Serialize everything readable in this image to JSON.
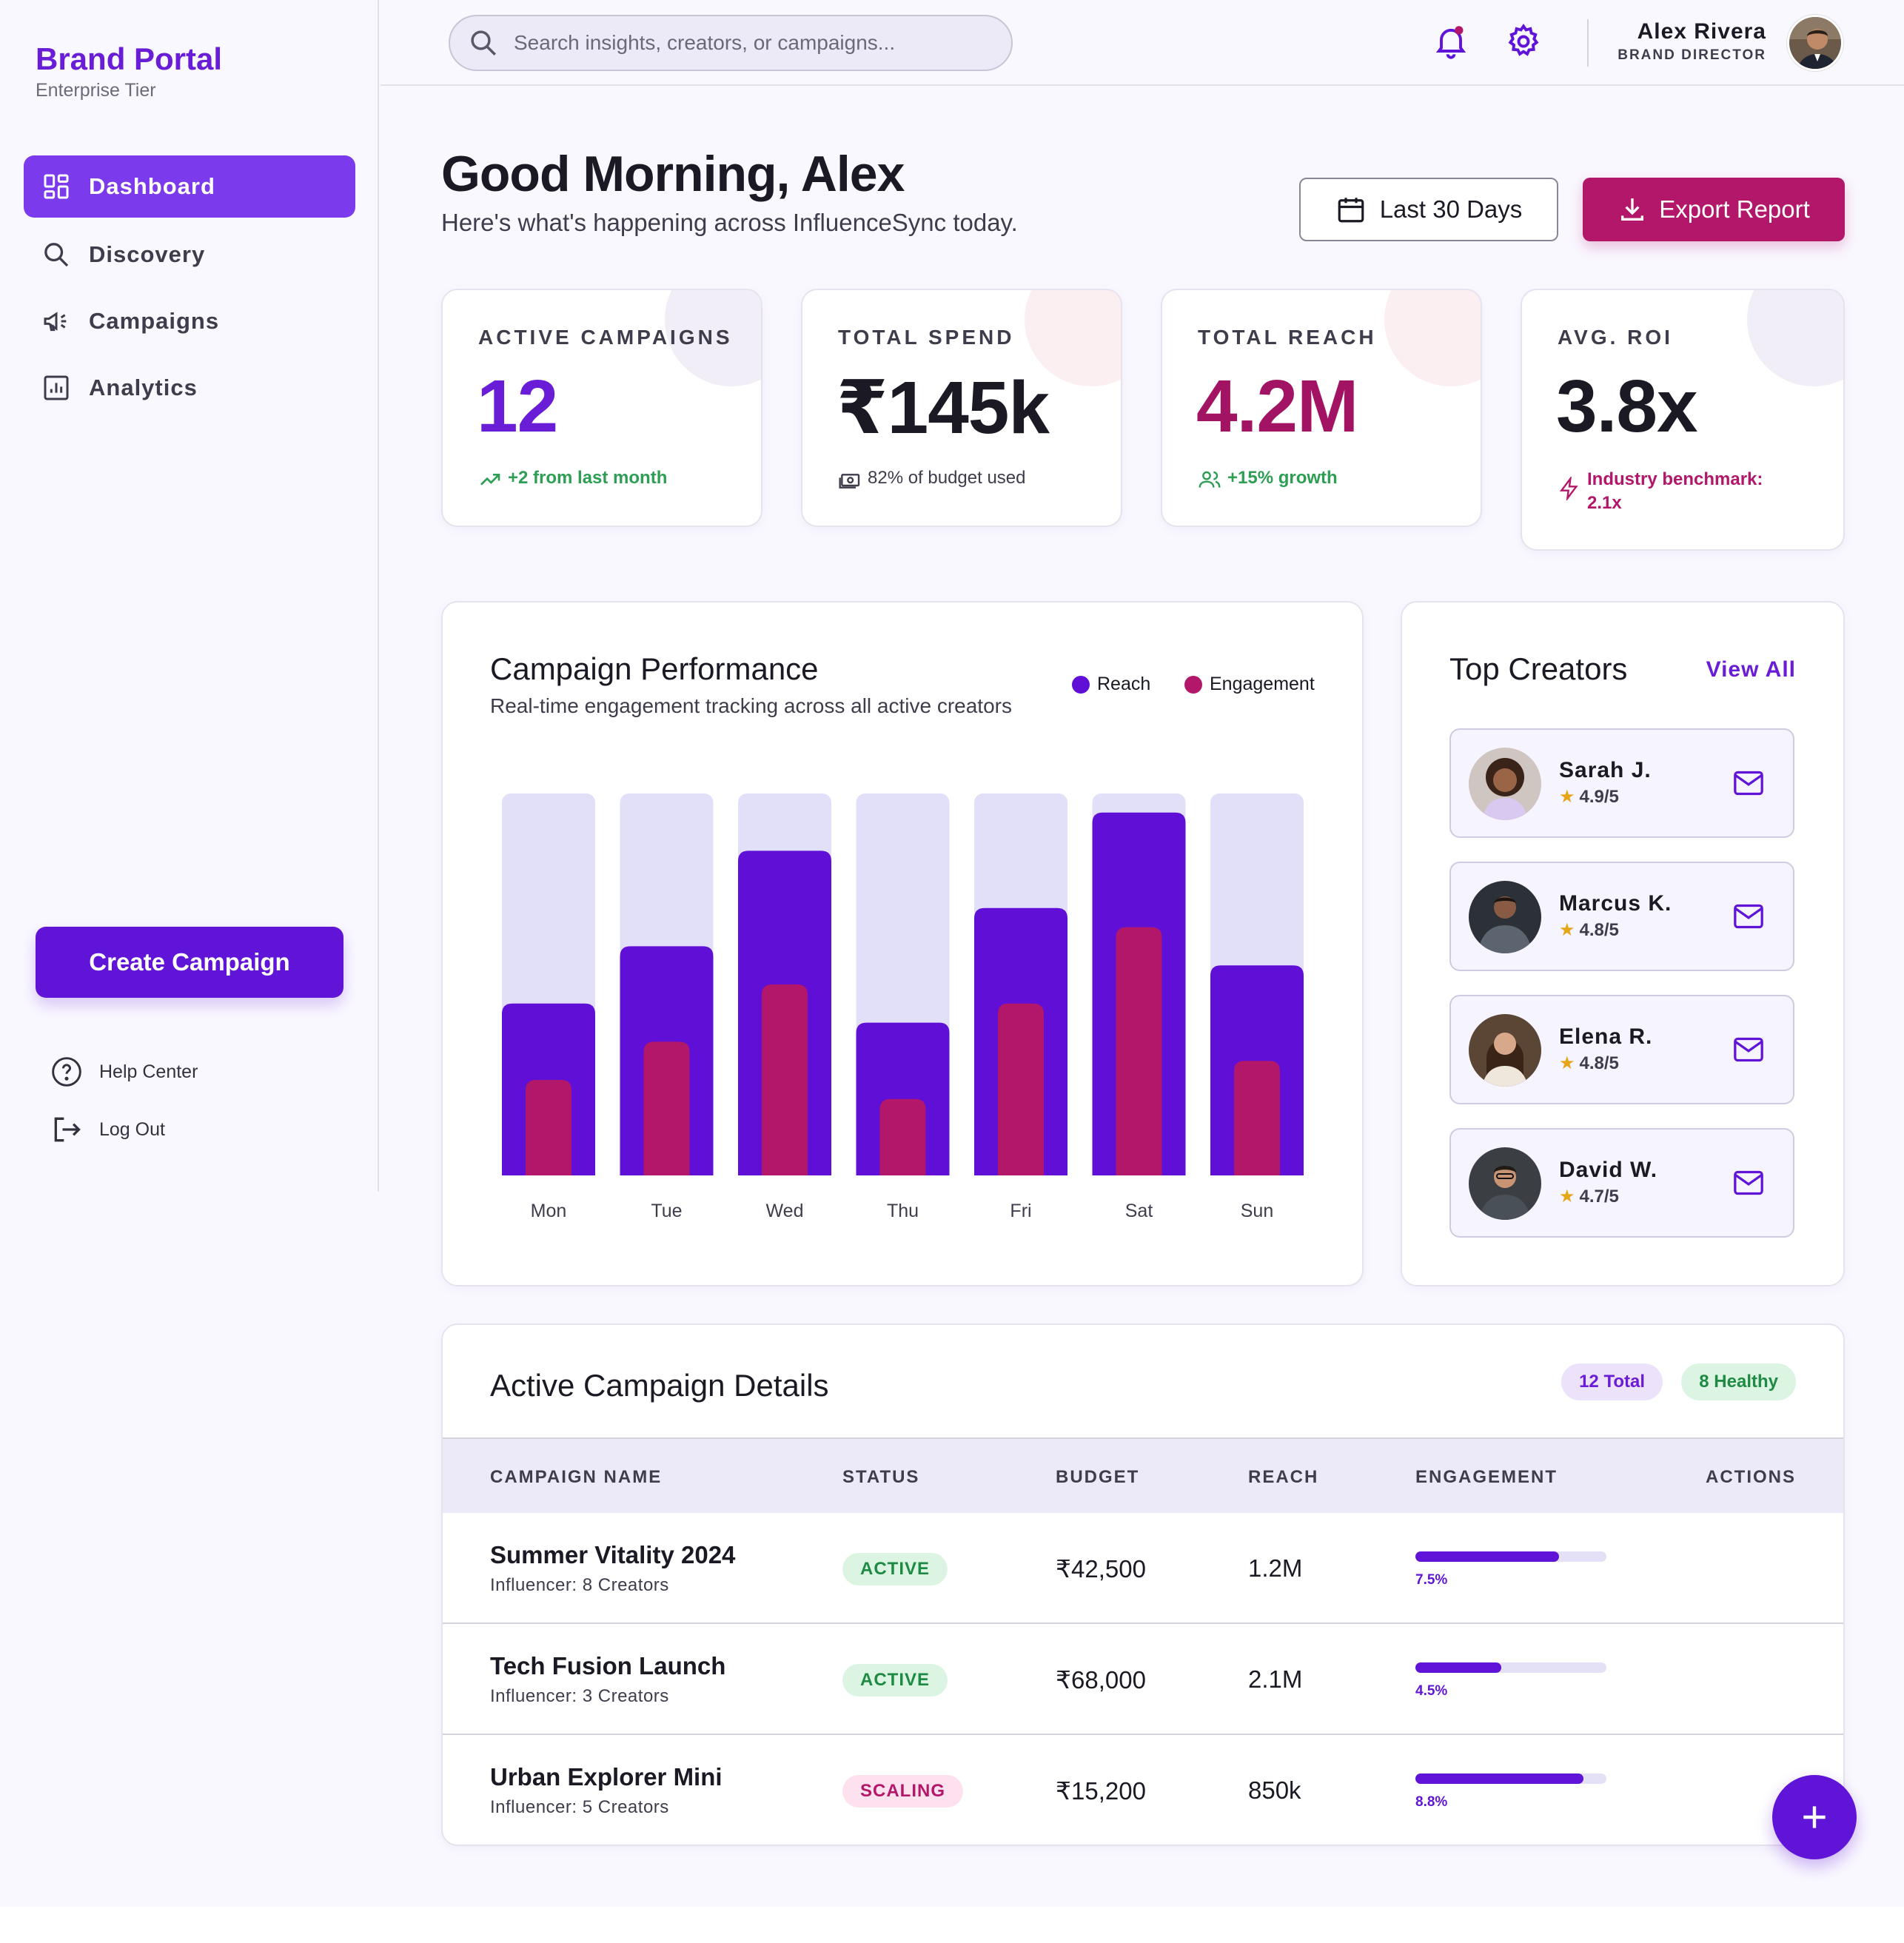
{
  "brand": {
    "title": "Brand Portal",
    "tier": "Enterprise Tier"
  },
  "nav": [
    {
      "label": "Dashboard",
      "icon": "dashboard-icon",
      "active": true
    },
    {
      "label": "Discovery",
      "icon": "search-icon",
      "active": false
    },
    {
      "label": "Campaigns",
      "icon": "megaphone-icon",
      "active": false
    },
    {
      "label": "Analytics",
      "icon": "analytics-icon",
      "active": false
    }
  ],
  "sidebar": {
    "create_label": "Create Campaign",
    "help_label": "Help Center",
    "logout_label": "Log Out"
  },
  "search": {
    "placeholder": "Search insights, creators, or campaigns..."
  },
  "user": {
    "name": "Alex Rivera",
    "role": "BRAND DIRECTOR"
  },
  "header": {
    "greeting": "Good Morning, Alex",
    "subtitle": "Here's what's happening across InfluenceSync today.",
    "date_label": "Last 30 Days",
    "export_label": "Export Report"
  },
  "stats": [
    {
      "label": "ACTIVE CAMPAIGNS",
      "value": "12",
      "foot": "+2 from last month",
      "value_color": "#6a1dd6",
      "foot_color": "#2e9e55"
    },
    {
      "label": "TOTAL SPEND",
      "value": "₹145k",
      "foot": "82% of budget used",
      "value_color": "#1b1a24",
      "foot_color": "#3f3c4c"
    },
    {
      "label": "TOTAL REACH",
      "value": "4.2M",
      "foot": "+15% growth",
      "value_color": "#a31363",
      "foot_color": "#2e9e55"
    },
    {
      "label": "AVG. ROI",
      "value": "3.8x",
      "foot": "Industry benchmark: 2.1x",
      "value_color": "#1b1a24",
      "foot_color": "#b3176a"
    }
  ],
  "performance": {
    "title": "Campaign Performance",
    "subtitle": "Real-time engagement tracking across all active creators",
    "legend_reach": "Reach",
    "legend_engagement": "Engagement"
  },
  "chart_data": {
    "type": "bar",
    "categories": [
      "Mon",
      "Tue",
      "Wed",
      "Thu",
      "Fri",
      "Sat",
      "Sun"
    ],
    "series": [
      {
        "name": "Reach",
        "values": [
          45,
          60,
          85,
          40,
          70,
          95,
          55
        ],
        "color": "#5f0fd6"
      },
      {
        "name": "Engagement",
        "values": [
          25,
          35,
          50,
          20,
          45,
          65,
          30
        ],
        "color": "#b3176a"
      }
    ],
    "ylim": [
      0,
      100
    ],
    "track_color": "#e2e0f9",
    "title": "Campaign Performance"
  },
  "creators": {
    "title": "Top Creators",
    "view_all": "View All",
    "items": [
      {
        "name": "Sarah J.",
        "rating": "4.9/5"
      },
      {
        "name": "Marcus K.",
        "rating": "4.8/5"
      },
      {
        "name": "Elena R.",
        "rating": "4.8/5"
      },
      {
        "name": "David W.",
        "rating": "4.7/5"
      }
    ]
  },
  "table": {
    "title": "Active Campaign Details",
    "total_badge": "12 Total",
    "healthy_badge": "8 Healthy",
    "columns": [
      "CAMPAIGN NAME",
      "STATUS",
      "BUDGET",
      "REACH",
      "ENGAGEMENT",
      "ACTIONS"
    ],
    "rows": [
      {
        "name": "Summer Vitality 2024",
        "influencer": "Influencer: 8 Creators",
        "status": "ACTIVE",
        "budget": "₹42,500",
        "reach": "1.2M",
        "engagement": "7.5%",
        "eng_fraction": 0.75
      },
      {
        "name": "Tech Fusion Launch",
        "influencer": "Influencer: 3 Creators",
        "status": "ACTIVE",
        "budget": "₹68,000",
        "reach": "2.1M",
        "engagement": "4.5%",
        "eng_fraction": 0.45
      },
      {
        "name": "Urban Explorer Mini",
        "influencer": "Influencer: 5 Creators",
        "status": "SCALING",
        "budget": "₹15,200",
        "reach": "850k",
        "engagement": "8.8%",
        "eng_fraction": 0.88
      }
    ]
  },
  "colors": {
    "primary": "#5f14d8",
    "accent": "#b3176a",
    "active_bg": "#dcf5e3",
    "active_fg": "#1e8a44",
    "scaling_bg": "#fde1ee",
    "scaling_fg": "#b3176a"
  }
}
